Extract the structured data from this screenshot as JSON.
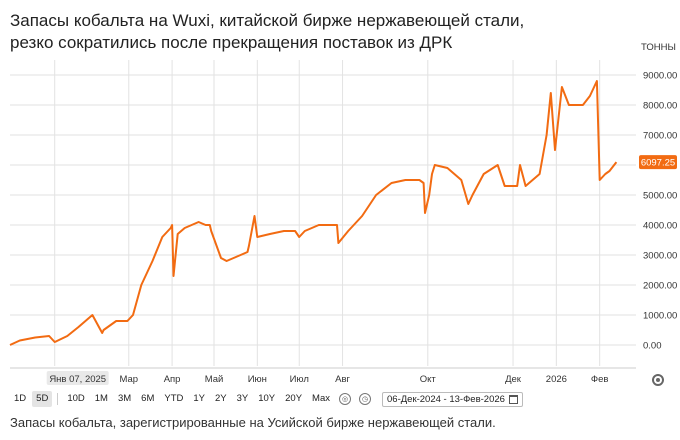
{
  "title": {
    "line1": "Запасы кобальта на Wuxi, китайской бирже нержавеющей стали,",
    "line2": "резко сократились после прекращения поставок из ДРК"
  },
  "caption": "Запасы кобальта, зарегистрированные на Усийской бирже нержавеющей стали.",
  "toolbar": {
    "buttons": [
      "1D",
      "5D",
      "10D",
      "1M",
      "3M",
      "6M",
      "YTD",
      "1Y",
      "2Y",
      "3Y",
      "10Y",
      "20Y",
      "Max"
    ],
    "active": "5D",
    "date_range": "06-Дек-2024 - 13-Фев-2026"
  },
  "colors": {
    "line": "#f26b12",
    "badge": "#f26b12",
    "grid": "#e2e2e2",
    "axis_text": "#333333"
  },
  "chart_data": {
    "type": "line",
    "y_unit_label": "тонны",
    "ylim": [
      -500,
      9500
    ],
    "y_ticks": [
      "9000.00",
      "8000.00",
      "7000.00",
      "6000.00",
      "5000.00",
      "4000.00",
      "3000.00",
      "2000.00",
      "1000.00",
      "0.00"
    ],
    "y_tick_values": [
      9000,
      8000,
      7000,
      6000,
      5000,
      4000,
      3000,
      2000,
      1000,
      0
    ],
    "x_ticks": [
      "Янв 07, 2025",
      "Мар",
      "Апр",
      "Май",
      "Июн",
      "Июл",
      "Авг",
      "Окт",
      "Дек",
      "2026",
      "Фев"
    ],
    "x_tick_dates": [
      "2025-01-07",
      "2025-03-01",
      "2025-04-01",
      "2025-05-01",
      "2025-06-01",
      "2025-07-01",
      "2025-08-01",
      "2025-10-01",
      "2025-12-01",
      "2026-01-01",
      "2026-02-01"
    ],
    "highlighted_x_tick": "Янв 07, 2025",
    "grid": true,
    "last_value_label": "6097.25",
    "series": [
      {
        "dates": [
          "2024-12-06",
          "2024-12-13",
          "2024-12-24",
          "2025-01-03",
          "2025-01-07",
          "2025-01-08",
          "2025-01-16",
          "2025-01-24",
          "2025-02-03",
          "2025-02-10",
          "2025-02-11",
          "2025-02-20",
          "2025-02-28",
          "2025-03-04",
          "2025-03-10",
          "2025-03-18",
          "2025-03-25",
          "2025-03-31",
          "2025-04-01",
          "2025-04-02",
          "2025-04-05",
          "2025-04-10",
          "2025-04-20",
          "2025-04-25",
          "2025-04-28",
          "2025-04-29",
          "2025-05-06",
          "2025-05-10",
          "2025-05-20",
          "2025-05-25",
          "2025-05-26",
          "2025-05-30",
          "2025-06-01",
          "2025-06-10",
          "2025-06-20",
          "2025-06-28",
          "2025-07-01",
          "2025-07-05",
          "2025-07-15",
          "2025-07-20",
          "2025-07-28",
          "2025-07-29",
          "2025-08-05",
          "2025-08-15",
          "2025-08-25",
          "2025-09-05",
          "2025-09-15",
          "2025-09-25",
          "2025-09-28",
          "2025-09-29",
          "2025-10-02",
          "2025-10-04",
          "2025-10-06",
          "2025-10-15",
          "2025-10-25",
          "2025-10-30",
          "2025-11-02",
          "2025-11-10",
          "2025-11-20",
          "2025-11-25",
          "2025-12-04",
          "2025-12-06",
          "2025-12-10",
          "2025-12-15",
          "2025-12-20",
          "2025-12-25",
          "2025-12-28",
          "2025-12-31",
          "2026-01-05",
          "2026-01-10",
          "2026-01-20",
          "2026-01-25",
          "2026-01-30",
          "2026-02-01",
          "2026-02-05",
          "2026-02-08",
          "2026-02-13"
        ],
        "values": [
          0,
          150,
          250,
          300,
          100,
          120,
          300,
          600,
          1000,
          400,
          500,
          800,
          800,
          1000,
          2000,
          2800,
          3600,
          3900,
          4000,
          2300,
          3700,
          3900,
          4100,
          4000,
          4000,
          3800,
          2900,
          2800,
          3000,
          3100,
          3300,
          4300,
          3600,
          3700,
          3800,
          3800,
          3600,
          3800,
          4000,
          4000,
          4000,
          3400,
          3800,
          4300,
          5000,
          5400,
          5500,
          5500,
          5400,
          4400,
          5000,
          5700,
          6000,
          5900,
          5500,
          4700,
          5000,
          5700,
          6000,
          5300,
          5300,
          6000,
          5300,
          5500,
          5700,
          7000,
          8400,
          6500,
          8600,
          8000,
          8000,
          8300,
          8800,
          5500,
          5700,
          5800,
          6097.25
        ]
      }
    ]
  }
}
